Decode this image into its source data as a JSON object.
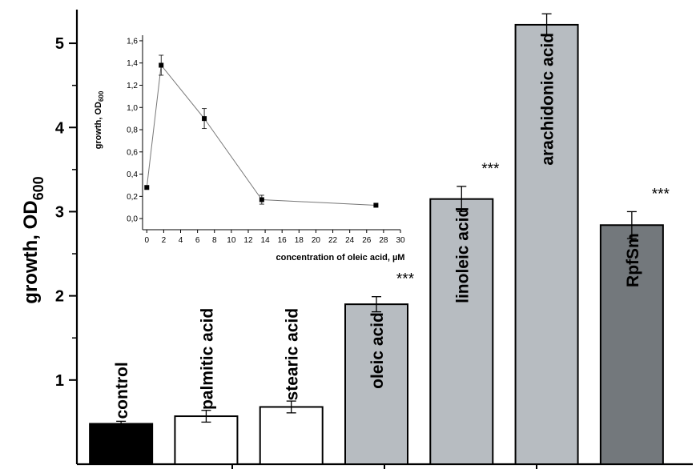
{
  "chart_data": [
    {
      "type": "bar",
      "ylabel": "growth, OD",
      "ylabel_sub": "600",
      "ylim": [
        0.0,
        5.4
      ],
      "yticks": [
        1,
        2,
        3,
        4,
        5
      ],
      "categories": [
        "control",
        "palmitic acid",
        "stearic acid",
        "oleic acid",
        "linoleic acid",
        "arachidonic acid",
        "RpfSm"
      ],
      "values": [
        0.48,
        0.57,
        0.68,
        1.9,
        3.15,
        5.22,
        2.84
      ],
      "errors": [
        0.03,
        0.07,
        0.07,
        0.09,
        0.15,
        0.13,
        0.16
      ],
      "significance": [
        "",
        "",
        "",
        "***",
        "***",
        "***",
        "***"
      ],
      "bar_colors": [
        "#000000",
        "#ffffff",
        "#ffffff",
        "#b7bcc1",
        "#b7bcc1",
        "#b7bcc1",
        "#73787c"
      ],
      "label_colors": [
        "#000000",
        "#000000",
        "#000000",
        "#000000",
        "#000000",
        "#000000",
        "#000000"
      ]
    },
    {
      "type": "line",
      "title": "",
      "xlabel": "concentration of oleic acid, µM",
      "ylabel": "growth, OD",
      "ylabel_sub": "600",
      "xlim": [
        -0.5,
        30
      ],
      "ylim": [
        -0.1,
        1.65
      ],
      "xticks": [
        0,
        2,
        4,
        6,
        8,
        10,
        12,
        14,
        16,
        18,
        20,
        22,
        24,
        26,
        28,
        30
      ],
      "yticks": [
        "0,0",
        "0,2",
        "0,4",
        "0,6",
        "0,8",
        "1,0",
        "1,2",
        "1,4",
        "1,6"
      ],
      "ytick_values": [
        0.0,
        0.2,
        0.4,
        0.6,
        0.8,
        1.0,
        1.2,
        1.4,
        1.6
      ],
      "x": [
        0,
        1.7,
        6.8,
        13.6,
        27.1
      ],
      "y": [
        0.28,
        1.38,
        0.9,
        0.17,
        0.12
      ],
      "errors": [
        0.0,
        0.09,
        0.09,
        0.04,
        0.0
      ]
    }
  ]
}
